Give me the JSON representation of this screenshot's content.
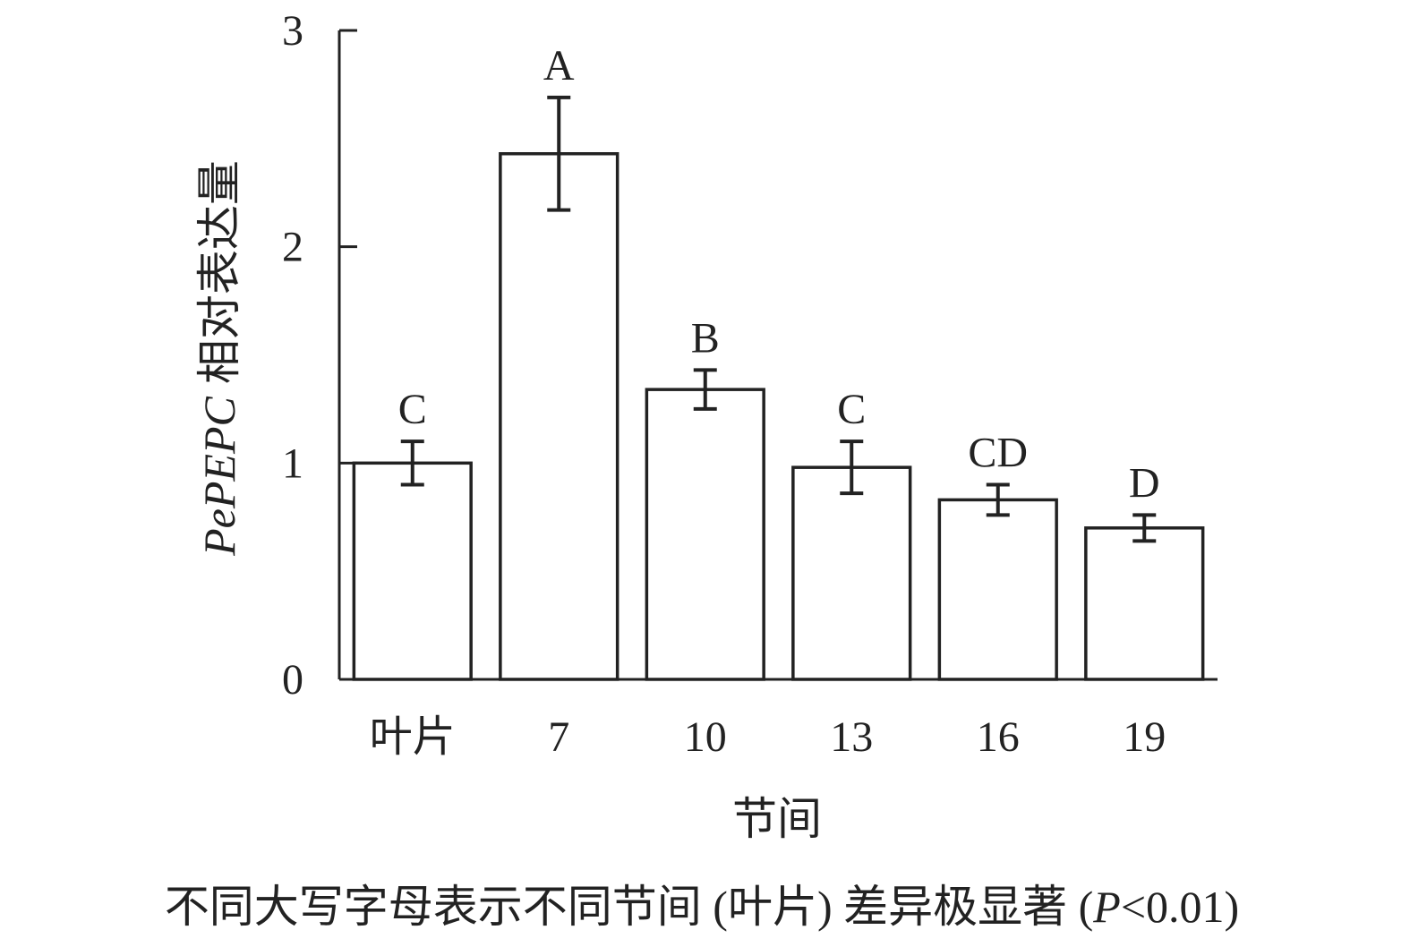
{
  "chart_data": {
    "type": "bar",
    "ylabel": {
      "gene": "PePEPC",
      "text": "相对表达量"
    },
    "xlabel": "节间",
    "caption": [
      "不同大写字母表示不同节间 (叶片) 差异极显著 (",
      "P",
      "<0.01)"
    ],
    "categories": [
      "叶片",
      "7",
      "10",
      "13",
      "16",
      "19"
    ],
    "values": [
      1.0,
      2.43,
      1.34,
      0.98,
      0.83,
      0.7
    ],
    "errors": [
      0.1,
      0.26,
      0.09,
      0.12,
      0.07,
      0.06
    ],
    "significance": [
      "C",
      "A",
      "B",
      "C",
      "CD",
      "D"
    ],
    "color": "#ffffff",
    "ylim": [
      0,
      3
    ],
    "yticks": [
      0,
      1,
      2,
      3
    ],
    "grid": false
  }
}
